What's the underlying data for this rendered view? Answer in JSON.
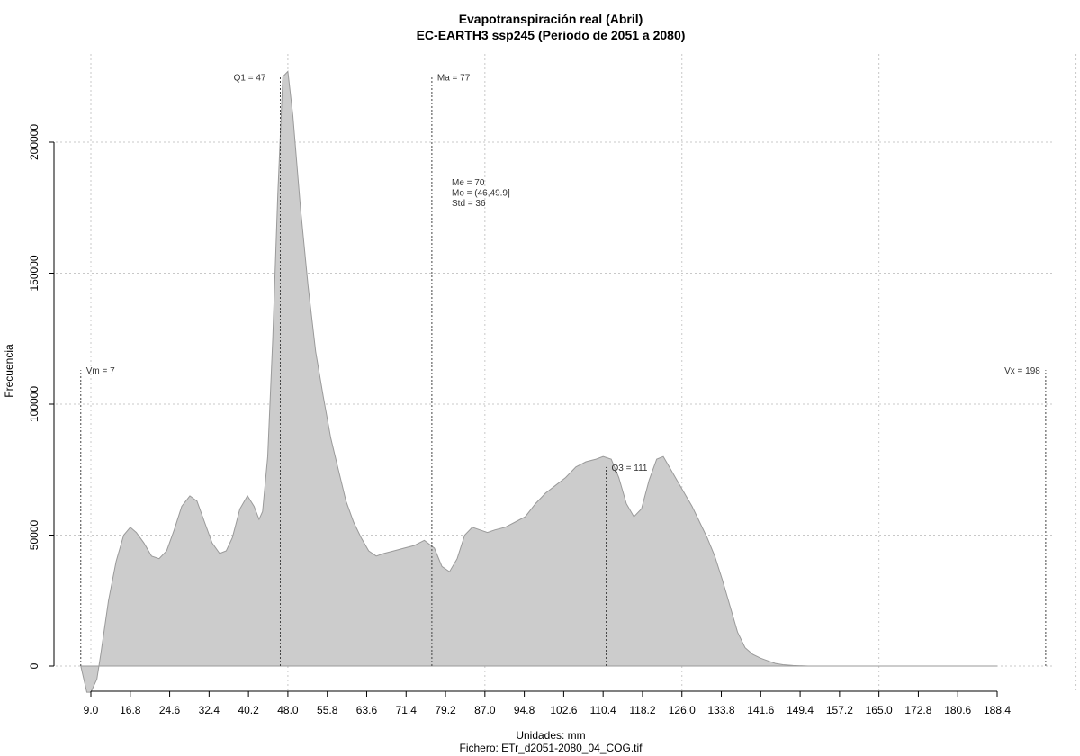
{
  "chart_data": {
    "type": "area",
    "title": "Evapotranspiración real (Abril)",
    "subtitle": "EC-EARTH3 ssp245 (Periodo de 2051 a 2080)",
    "xlabel": "Unidades: mm",
    "ylabel": "Frecuencia",
    "footer": "Fichero: ETr_d2051-2080_04_COG.tif",
    "grid": true,
    "xlim": [
      9.0,
      188.4
    ],
    "ylim": [
      0,
      200000
    ],
    "x_ticks": [
      "9.0",
      "16.8",
      "24.6",
      "32.4",
      "40.2",
      "48.0",
      "55.8",
      "63.6",
      "71.4",
      "79.2",
      "87.0",
      "94.8",
      "102.6",
      "110.4",
      "118.2",
      "126.0",
      "133.8",
      "141.6",
      "149.4",
      "157.2",
      "165.0",
      "172.8",
      "180.6",
      "188.4"
    ],
    "y_ticks": [
      "0",
      "50000",
      "100000",
      "150000",
      "200000"
    ],
    "series": [
      {
        "values": [
          [
            7,
            0
          ],
          [
            8.2,
            -10000
          ],
          [
            9.0,
            -10000
          ],
          [
            10.2,
            -5000
          ],
          [
            11.0,
            5000
          ],
          [
            12.5,
            25000
          ],
          [
            14.0,
            40000
          ],
          [
            15.5,
            50000
          ],
          [
            16.8,
            53000
          ],
          [
            18.0,
            51000
          ],
          [
            19.5,
            47000
          ],
          [
            21.0,
            42000
          ],
          [
            22.5,
            41000
          ],
          [
            24.0,
            44000
          ],
          [
            25.5,
            52000
          ],
          [
            27.0,
            61000
          ],
          [
            28.6,
            65000
          ],
          [
            30.0,
            63000
          ],
          [
            31.5,
            55000
          ],
          [
            33.0,
            47000
          ],
          [
            34.5,
            43000
          ],
          [
            35.8,
            44000
          ],
          [
            37.0,
            49000
          ],
          [
            38.5,
            60000
          ],
          [
            40.0,
            65000
          ],
          [
            41.3,
            61000
          ],
          [
            42.3,
            56000
          ],
          [
            43.0,
            59000
          ],
          [
            44.0,
            80000
          ],
          [
            45.0,
            125000
          ],
          [
            46.0,
            180000
          ],
          [
            47.0,
            225000
          ],
          [
            48.0,
            227000
          ],
          [
            49.0,
            210000
          ],
          [
            50.5,
            175000
          ],
          [
            52.0,
            145000
          ],
          [
            53.5,
            120000
          ],
          [
            55.0,
            103000
          ],
          [
            56.5,
            87000
          ],
          [
            58.0,
            75000
          ],
          [
            59.5,
            63000
          ],
          [
            61.0,
            55000
          ],
          [
            62.5,
            49000
          ],
          [
            64.0,
            44000
          ],
          [
            65.5,
            42000
          ],
          [
            67.0,
            43000
          ],
          [
            69.0,
            44000
          ],
          [
            71.0,
            45000
          ],
          [
            73.0,
            46000
          ],
          [
            75.0,
            48000
          ],
          [
            77.0,
            45000
          ],
          [
            78.5,
            38000
          ],
          [
            80.0,
            36000
          ],
          [
            81.5,
            41000
          ],
          [
            83.0,
            50000
          ],
          [
            84.5,
            53000
          ],
          [
            86.0,
            52000
          ],
          [
            87.5,
            51000
          ],
          [
            89.0,
            52000
          ],
          [
            91.0,
            53000
          ],
          [
            93.0,
            55000
          ],
          [
            95.0,
            57000
          ],
          [
            97.0,
            62000
          ],
          [
            99.0,
            66000
          ],
          [
            101.0,
            69000
          ],
          [
            103.0,
            72000
          ],
          [
            105.0,
            76000
          ],
          [
            107.0,
            78000
          ],
          [
            109.0,
            79000
          ],
          [
            110.4,
            80000
          ],
          [
            112.0,
            79000
          ],
          [
            113.5,
            72000
          ],
          [
            115.0,
            62000
          ],
          [
            116.5,
            57000
          ],
          [
            118.0,
            60000
          ],
          [
            119.5,
            71000
          ],
          [
            121.0,
            79000
          ],
          [
            122.3,
            80000
          ],
          [
            123.5,
            76000
          ],
          [
            125.0,
            71000
          ],
          [
            126.5,
            66000
          ],
          [
            128.0,
            61000
          ],
          [
            129.5,
            55000
          ],
          [
            131.0,
            49000
          ],
          [
            132.5,
            42000
          ],
          [
            134.0,
            33000
          ],
          [
            135.5,
            23000
          ],
          [
            137.0,
            13000
          ],
          [
            138.5,
            7000
          ],
          [
            140.0,
            4500
          ],
          [
            141.6,
            3000
          ],
          [
            143.0,
            2000
          ],
          [
            144.5,
            1000
          ],
          [
            146.0,
            500
          ],
          [
            148.0,
            200
          ],
          [
            151.0,
            0
          ],
          [
            188.4,
            0
          ]
        ],
        "color": "#cccccc",
        "stroke": "#9a9a9a"
      }
    ],
    "annotations": {
      "markers": [
        {
          "label": "Vm = 7",
          "x": 7,
          "level": 113000
        },
        {
          "label": "Q1 = 47",
          "x": 46.5,
          "level": 225000
        },
        {
          "label": "Ma = 77",
          "x": 76.5,
          "level": 225000
        },
        {
          "label": "Q3 = 111",
          "x": 111,
          "level": 76000
        },
        {
          "label": "Vx = 198",
          "x": 198,
          "level": 113000
        }
      ],
      "stats": [
        "Me = 70",
        "Mo = (46,49.9]",
        "Std = 36"
      ]
    }
  }
}
